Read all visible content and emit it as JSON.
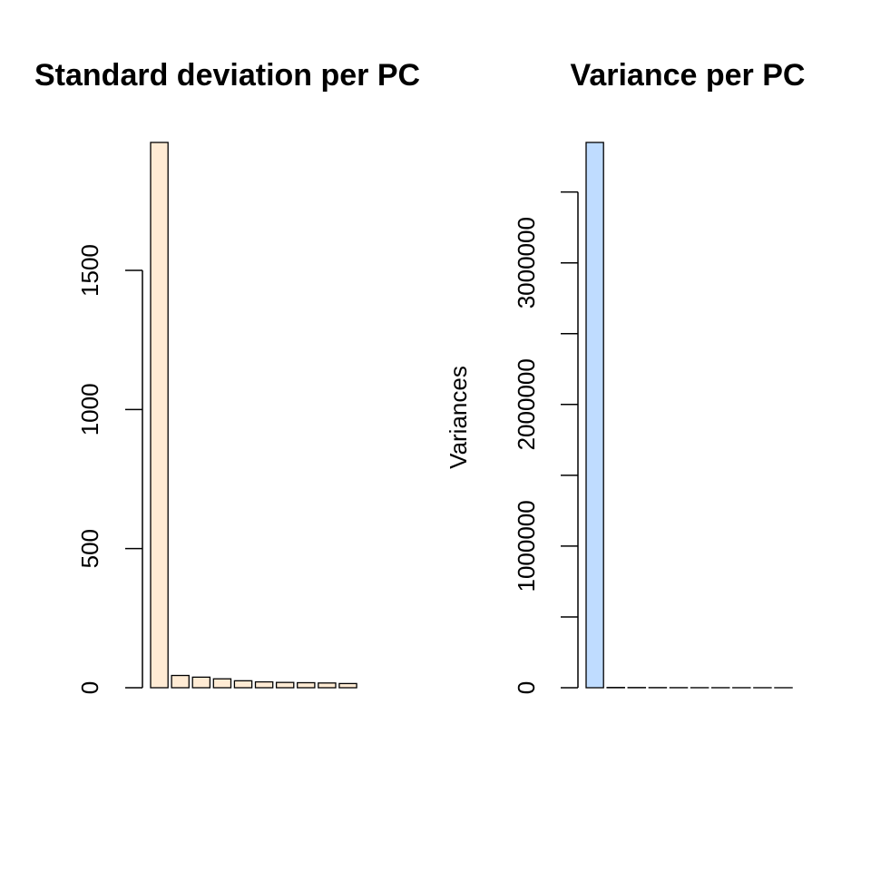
{
  "chart_data": [
    {
      "type": "bar",
      "title": "Standard deviation per PC",
      "xlabel": "",
      "ylabel": "",
      "color": "#FFEBD4",
      "ylim": [
        0,
        1960
      ],
      "yticks": [
        0,
        500,
        1000,
        1500
      ],
      "ytick_labels": [
        "0",
        "500",
        "1000",
        "1500"
      ],
      "values": [
        1960,
        44,
        38,
        32,
        25,
        21,
        19,
        18,
        17,
        15
      ]
    },
    {
      "type": "bar",
      "title": "Variance per PC",
      "xlabel": "",
      "ylabel": "Variances",
      "color": "#BFDCFF",
      "ylim": [
        0,
        3850000
      ],
      "yticks": [
        0,
        500000,
        1000000,
        1500000,
        2000000,
        2500000,
        3000000,
        3500000
      ],
      "ytick_labels": [
        "0",
        "",
        "1000000",
        "",
        "2000000",
        "",
        "3000000",
        ""
      ],
      "values": [
        3850000,
        1900,
        1400,
        1000,
        620,
        440,
        360,
        320,
        290,
        225
      ]
    }
  ]
}
